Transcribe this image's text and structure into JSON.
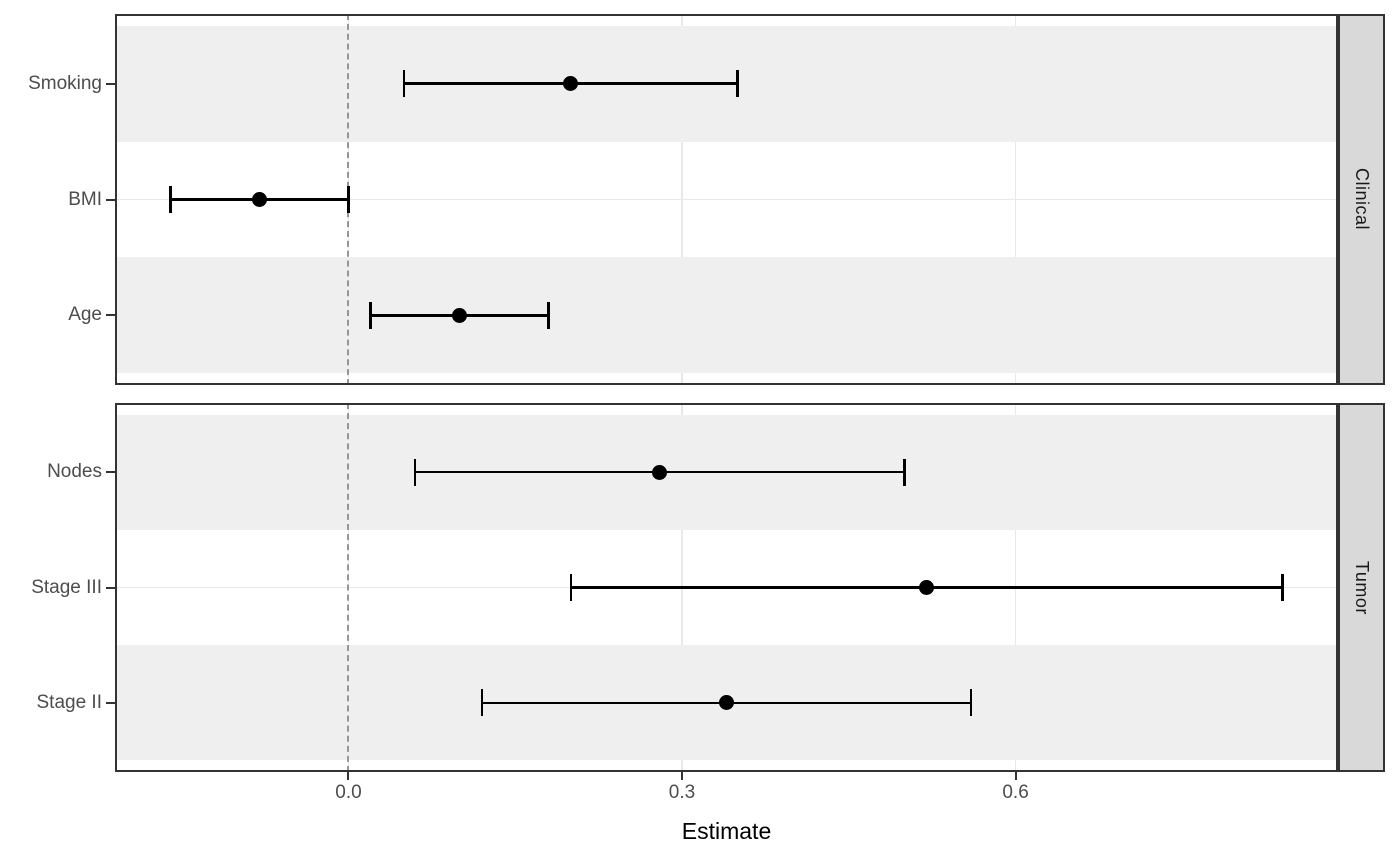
{
  "chart_data": {
    "type": "scatter",
    "subtype": "forest-plot-dot-and-ci",
    "title": "",
    "xlabel": "Estimate",
    "ylabel": "",
    "xlim": [
      -0.21,
      0.89
    ],
    "x_tick_values": [
      0.0,
      0.3,
      0.6
    ],
    "x_tick_labels": [
      "0.0",
      "0.3",
      "0.6"
    ],
    "grid": "major-only, light gray, drawn under row stripes",
    "legend_position": "none",
    "facet_strip_side": "right",
    "reference_line": {
      "x": 0.0,
      "style": "dashed",
      "color": "#969696"
    },
    "panels": [
      {
        "facet": "Clinical",
        "rows": [
          {
            "label": "Smoking",
            "estimate": 0.2,
            "lower": 0.05,
            "upper": 0.35,
            "shaded": true
          },
          {
            "label": "BMI",
            "estimate": -0.08,
            "lower": -0.16,
            "upper": 0.0,
            "shaded": false
          },
          {
            "label": "Age",
            "estimate": 0.1,
            "lower": 0.02,
            "upper": 0.18,
            "shaded": true
          }
        ]
      },
      {
        "facet": "Tumor",
        "rows": [
          {
            "label": "Nodes",
            "estimate": 0.28,
            "lower": 0.06,
            "upper": 0.5,
            "shaded": true
          },
          {
            "label": "Stage III",
            "estimate": 0.52,
            "lower": 0.2,
            "upper": 0.84,
            "shaded": false
          },
          {
            "label": "Stage II",
            "estimate": 0.34,
            "lower": 0.12,
            "upper": 0.56,
            "shaded": true
          }
        ]
      }
    ]
  },
  "colors": {
    "point_and_ci": "#000000",
    "row_stripe": "#efefef",
    "gridline": "#e9e9e9",
    "panel_border": "#333333",
    "facet_strip_background": "#d9d9d9",
    "facet_strip_text": "#1a1a1a",
    "axis_text": "#4d4d4d",
    "axis_title": "#000000",
    "reference_line": "#969696"
  }
}
